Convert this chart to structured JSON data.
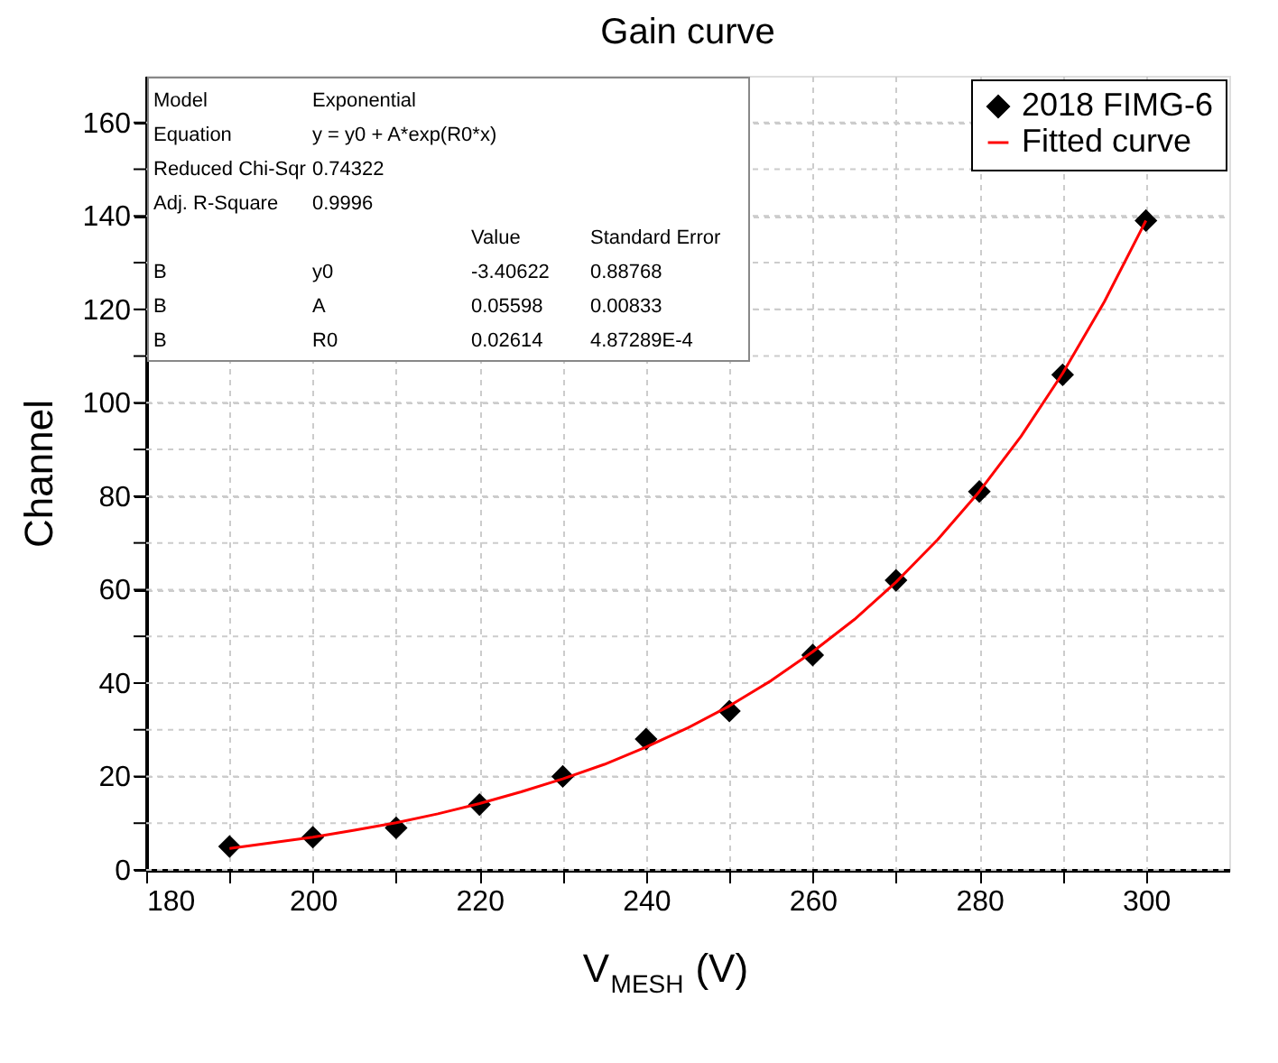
{
  "chart_data": {
    "type": "scatter",
    "title": "Gain curve",
    "xlabel": "V$_{MESH}$ (V)",
    "ylabel": "Channel",
    "xlim": [
      180,
      310
    ],
    "ylim": [
      0,
      170
    ],
    "xticks": [
      180,
      {
        "value": 190,
        "label": null
      },
      200,
      {
        "value": 210,
        "label": null
      },
      220,
      {
        "value": 230,
        "label": null
      },
      240,
      {
        "value": 250,
        "label": null
      },
      260,
      {
        "value": 270,
        "label": null
      },
      280,
      {
        "value": 290,
        "label": null
      },
      300
    ],
    "yticks": [
      0,
      {
        "value": 10,
        "label": null
      },
      20,
      {
        "value": 30,
        "label": null
      },
      40,
      {
        "value": 50,
        "label": null
      },
      60,
      {
        "value": 70,
        "label": null
      },
      80,
      {
        "value": 90,
        "label": null
      },
      100,
      {
        "value": 110,
        "label": null
      },
      120,
      {
        "value": 130,
        "label": null
      },
      140,
      {
        "value": 150,
        "label": null
      },
      160
    ],
    "grid": true,
    "legend": "top right",
    "series": [
      {
        "name": "2018 FIMG-6",
        "marker": "diamond",
        "color": "#000000",
        "x": [
          190,
          200,
          210,
          220,
          230,
          240,
          250,
          260,
          270,
          280,
          290,
          300
        ],
        "values": [
          5,
          7,
          9,
          14,
          20,
          28,
          34,
          46,
          62,
          81,
          106,
          139
        ]
      },
      {
        "name": "Fitted curve",
        "type": "line",
        "color": "#ff0000",
        "x": [
          190,
          195,
          200,
          205,
          210,
          215,
          220,
          225,
          230,
          235,
          240,
          245,
          250,
          255,
          260,
          265,
          270,
          275,
          280,
          285,
          290,
          295,
          300
        ],
        "values": [
          4.6,
          5.8,
          7.0,
          8.5,
          10.1,
          12.0,
          14.2,
          16.7,
          19.5,
          22.6,
          26.3,
          30.4,
          35.1,
          40.5,
          46.7,
          53.6,
          61.6,
          70.7,
          81.0,
          92.8,
          106.3,
          121.6,
          139.0
        ]
      }
    ],
    "annotations": [
      "Model",
      "Exponential",
      "Equation",
      "y = y0 + A*exp(R0*x)",
      "Reduced Chi-Sqr",
      "0.74322",
      "Adj. R-Square",
      "0.9996",
      "Value",
      "Standard Error",
      "B",
      "y0",
      "-3.40622",
      "0.88768",
      "B",
      "A",
      "0.05598",
      "0.00833",
      "B",
      "R0",
      "0.02614",
      "4.87289E-4"
    ]
  }
}
